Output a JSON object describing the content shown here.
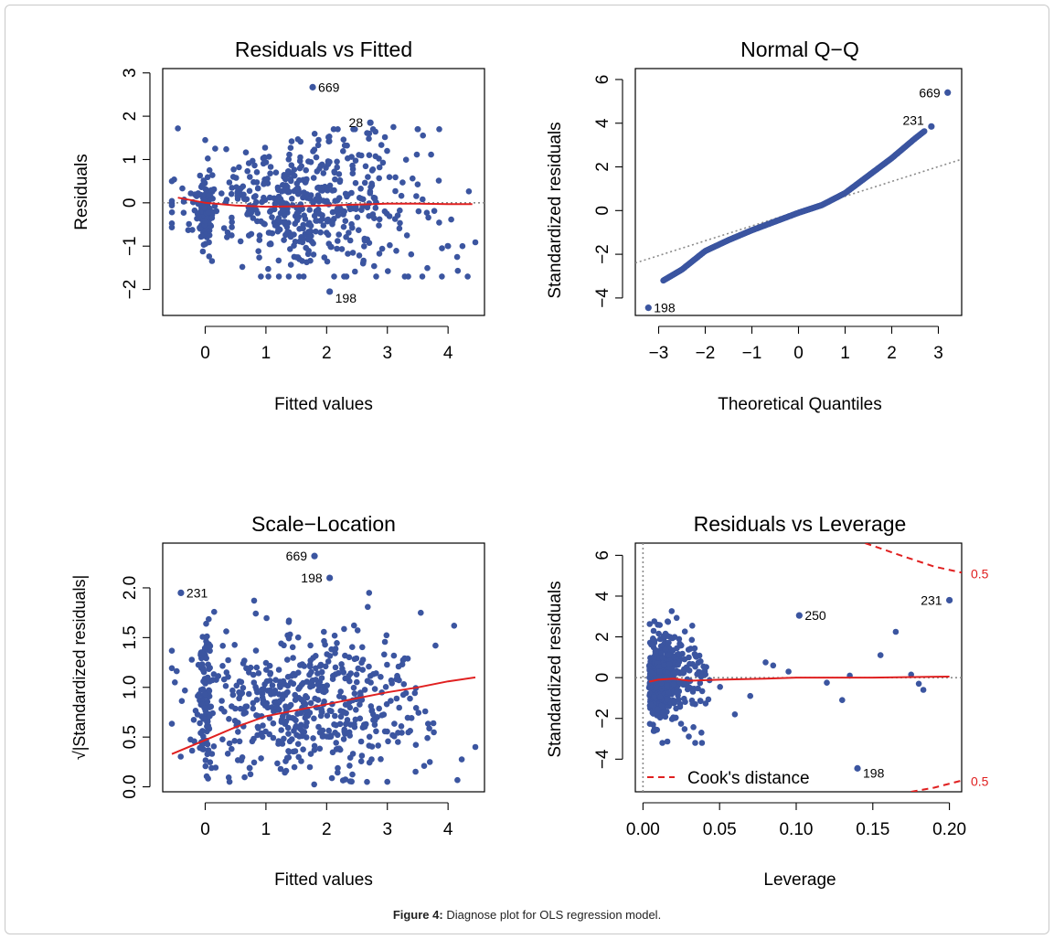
{
  "figure": {
    "caption_label": "Figure 4:",
    "caption_text": " Diagnose plot for OLS regression model."
  },
  "colors": {
    "points": "#3b55a0",
    "fit": "#e02020",
    "ref": "#8a8a8a",
    "cook": "#e02020"
  },
  "chart_data": [
    {
      "type": "scatter",
      "title": "Residuals vs Fitted",
      "xlabel": "Fitted values",
      "ylabel": "Residuals",
      "xlim": [
        -0.7,
        4.6
      ],
      "ylim": [
        -2.6,
        3.1
      ],
      "xticks": [
        0,
        1,
        2,
        3,
        4
      ],
      "xtick_labels": [
        "0",
        "1",
        "2",
        "3",
        "4"
      ],
      "yticks": [
        -2,
        -1,
        0,
        1,
        2,
        3
      ],
      "ytick_labels": [
        "−2",
        "−1",
        "0",
        "1",
        "2",
        "3"
      ],
      "ref_line": {
        "y": 0
      },
      "labeled_points": [
        {
          "x": 1.77,
          "y": 2.67,
          "label": "669"
        },
        {
          "x": 2.72,
          "y": 1.85,
          "label": "28"
        },
        {
          "x": 2.05,
          "y": -2.05,
          "label": "198"
        }
      ],
      "smooth": {
        "x": [
          -0.45,
          0,
          0.5,
          1,
          1.5,
          2,
          2.5,
          3,
          3.5,
          4,
          4.4
        ],
        "y": [
          0.12,
          0.0,
          -0.06,
          -0.09,
          -0.08,
          -0.06,
          -0.04,
          -0.02,
          -0.02,
          -0.03,
          -0.03
        ]
      }
    },
    {
      "type": "scatter",
      "title": "Normal Q−Q",
      "xlabel": "Theoretical Quantiles",
      "ylabel": "Standardized residuals",
      "xlim": [
        -3.5,
        3.5
      ],
      "ylim": [
        -4.8,
        6.5
      ],
      "xticks": [
        -3,
        -2,
        -1,
        0,
        1,
        2,
        3
      ],
      "xtick_labels": [
        "−3",
        "−2",
        "−1",
        "0",
        "1",
        "2",
        "3"
      ],
      "yticks": [
        -4,
        -2,
        0,
        2,
        4,
        6
      ],
      "ytick_labels": [
        "−4",
        "−2",
        "0",
        "2",
        "4",
        "6"
      ],
      "ref_line": {
        "x": [
          -3.5,
          3.5
        ],
        "y": [
          -2.4,
          2.35
        ]
      },
      "qq_curve": {
        "x": [
          -3.22,
          -2.9,
          -2.5,
          -2.0,
          -1.5,
          -1.0,
          -0.5,
          0,
          0.5,
          1.0,
          1.5,
          2.0,
          2.5,
          2.8
        ],
        "y": [
          -4.45,
          -3.2,
          -2.7,
          -1.85,
          -1.35,
          -0.9,
          -0.5,
          -0.1,
          0.25,
          0.8,
          1.6,
          2.4,
          3.3,
          3.8
        ]
      },
      "labeled_points": [
        {
          "x": 3.2,
          "y": 5.4,
          "label": "669"
        },
        {
          "x": 2.85,
          "y": 3.85,
          "label": "231"
        },
        {
          "x": -3.22,
          "y": -4.45,
          "label": "198"
        }
      ]
    },
    {
      "type": "scatter",
      "title": "Scale−Location",
      "xlabel": "Fitted values",
      "ylabel": "√|Standardized residuals|",
      "xlim": [
        -0.7,
        4.6
      ],
      "ylim": [
        -0.05,
        2.45
      ],
      "xticks": [
        0,
        1,
        2,
        3,
        4
      ],
      "xtick_labels": [
        "0",
        "1",
        "2",
        "3",
        "4"
      ],
      "yticks": [
        0.0,
        0.5,
        1.0,
        1.5,
        2.0
      ],
      "ytick_labels": [
        "0.0",
        "0.5",
        "1.0",
        "1.5",
        "2.0"
      ],
      "labeled_points": [
        {
          "x": -0.4,
          "y": 1.95,
          "label": "231"
        },
        {
          "x": 1.8,
          "y": 2.32,
          "label": "669"
        },
        {
          "x": 2.05,
          "y": 2.1,
          "label": "198"
        }
      ],
      "smooth": {
        "x": [
          -0.55,
          0,
          0.5,
          1,
          1.5,
          2,
          2.5,
          3,
          3.5,
          4,
          4.45
        ],
        "y": [
          0.33,
          0.47,
          0.6,
          0.71,
          0.77,
          0.83,
          0.89,
          0.95,
          1.0,
          1.06,
          1.1
        ]
      }
    },
    {
      "type": "scatter",
      "title": "Residuals vs Leverage",
      "xlabel": "Leverage",
      "ylabel": "Standardized residuals",
      "xlim": [
        -0.005,
        0.208
      ],
      "ylim": [
        -5.6,
        6.6
      ],
      "xticks": [
        0.0,
        0.05,
        0.1,
        0.15,
        0.2
      ],
      "xtick_labels": [
        "0.00",
        "0.05",
        "0.10",
        "0.15",
        "0.20"
      ],
      "yticks": [
        -4,
        -2,
        0,
        2,
        4,
        6
      ],
      "ytick_labels": [
        "−4",
        "−2",
        "0",
        "2",
        "4",
        "6"
      ],
      "ref_line": {
        "y": 0,
        "x": 0
      },
      "labeled_points": [
        {
          "x": 0.102,
          "y": 3.05,
          "label": "250"
        },
        {
          "x": 0.2,
          "y": 3.8,
          "label": "231"
        },
        {
          "x": 0.14,
          "y": -4.45,
          "label": "198"
        }
      ],
      "smooth": {
        "x": [
          0.004,
          0.01,
          0.02,
          0.03,
          0.05,
          0.08,
          0.1,
          0.15,
          0.2
        ],
        "y": [
          -0.2,
          -0.1,
          -0.05,
          -0.15,
          -0.1,
          -0.05,
          0.0,
          0.0,
          0.05
        ]
      },
      "cook_contours": [
        {
          "label": "0.5",
          "x": [
            0.145,
            0.17,
            0.19,
            0.208
          ],
          "y": [
            6.6,
            5.95,
            5.45,
            5.15
          ]
        },
        {
          "label": "0.5",
          "x": [
            0.175,
            0.19,
            0.208
          ],
          "y": [
            -5.6,
            -5.4,
            -5.05
          ]
        }
      ],
      "legend": {
        "label": "Cook's distance",
        "position": "bottom-left"
      }
    }
  ]
}
